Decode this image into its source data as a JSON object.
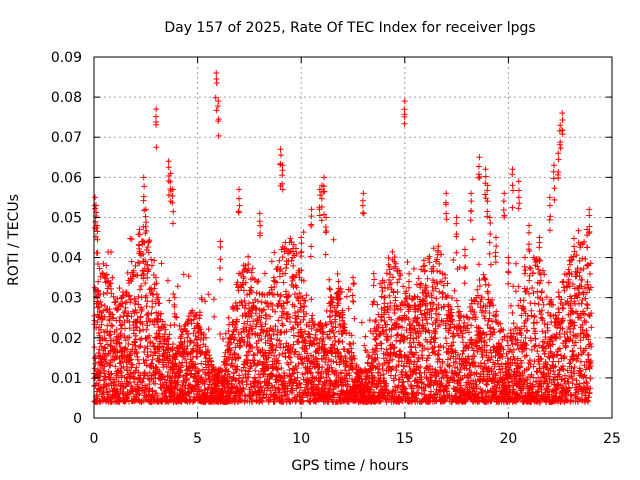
{
  "chart_data": {
    "type": "scatter",
    "title": "Day 157 of 2025, Rate Of TEC Index for receiver lpgs",
    "xlabel": "GPS time / hours",
    "ylabel": "ROTI / TECUs",
    "xlim": [
      0,
      25
    ],
    "ylim": [
      0,
      0.09
    ],
    "xticks": [
      "0",
      "5",
      "10",
      "15",
      "20",
      "25"
    ],
    "yticks": [
      "0",
      "0.01",
      "0.02",
      "0.03",
      "0.04",
      "0.05",
      "0.06",
      "0.07",
      "0.08",
      "0.09"
    ],
    "grid": true,
    "marker": "plus",
    "color": "#ff0000",
    "series": [
      {
        "x": [
          0.05,
          0.1,
          0.15,
          0.2,
          0.25,
          0.3,
          0.5,
          0.8,
          1.1,
          1.3,
          1.6,
          2.0,
          2.2,
          2.4,
          2.5,
          2.6,
          3.0,
          3.1,
          3.6,
          3.7,
          3.8,
          3.9,
          4.2,
          4.5,
          5.0,
          5.4,
          5.9,
          6.0,
          6.1,
          6.5,
          6.8,
          7.0,
          7.5,
          8.0,
          8.6,
          9.0,
          9.1,
          9.3,
          9.6,
          10.0,
          10.5,
          10.9,
          11.0,
          11.1,
          11.2,
          11.4,
          11.8,
          12.0,
          12.5,
          13.0,
          13.5,
          14.0,
          14.5,
          15.0,
          15.2,
          15.5,
          16.0,
          16.5,
          17.0,
          17.5,
          17.9,
          18.2,
          18.6,
          18.9,
          19.0,
          19.1,
          19.4,
          19.8,
          20.0,
          20.2,
          20.5,
          20.8,
          21.0,
          21.5,
          22.0,
          22.2,
          22.4,
          22.5,
          22.6,
          23.0,
          23.5,
          23.8,
          23.9
        ],
        "y": [
          0.055,
          0.053,
          0.048,
          0.034,
          0.025,
          0.02,
          0.015,
          0.018,
          0.022,
          0.02,
          0.017,
          0.024,
          0.047,
          0.06,
          0.052,
          0.02,
          0.077,
          0.03,
          0.064,
          0.061,
          0.057,
          0.03,
          0.022,
          0.02,
          0.018,
          0.02,
          0.086,
          0.079,
          0.044,
          0.025,
          0.02,
          0.057,
          0.022,
          0.051,
          0.018,
          0.067,
          0.063,
          0.03,
          0.04,
          0.045,
          0.052,
          0.057,
          0.058,
          0.06,
          0.05,
          0.032,
          0.034,
          0.025,
          0.035,
          0.056,
          0.036,
          0.03,
          0.028,
          0.079,
          0.034,
          0.03,
          0.028,
          0.026,
          0.056,
          0.05,
          0.042,
          0.056,
          0.065,
          0.062,
          0.058,
          0.05,
          0.045,
          0.056,
          0.04,
          0.062,
          0.059,
          0.04,
          0.048,
          0.045,
          0.055,
          0.063,
          0.066,
          0.073,
          0.076,
          0.028,
          0.025,
          0.047,
          0.052
        ]
      }
    ]
  }
}
